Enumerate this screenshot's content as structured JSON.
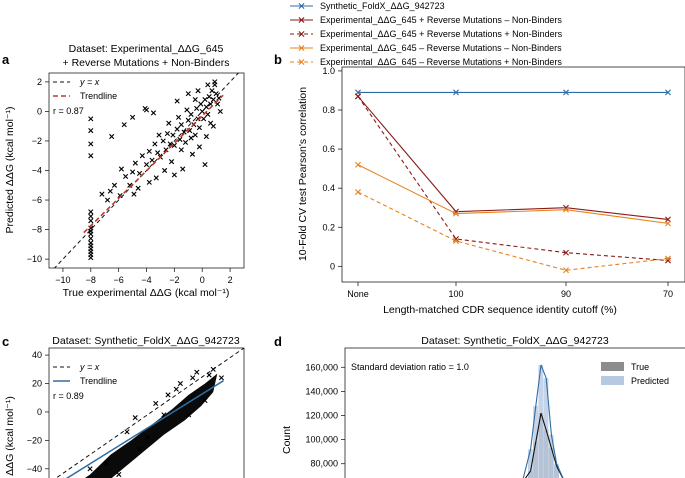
{
  "chart_data": [
    {
      "panel": "a",
      "type": "scatter",
      "title": "Dataset: Experimental_ΔΔG_645",
      "subtitle": "+ Reverse Mutations + Non-Binders",
      "xlabel": "True experimental ΔΔG (kcal mol⁻¹)",
      "ylabel": "Predicted ΔΔG (kcal mol⁻¹)",
      "xlim": [
        -11,
        3
      ],
      "ylim": [
        -10.6,
        2.6
      ],
      "xticks": [
        -10,
        -8,
        -6,
        -4,
        -2,
        0,
        2
      ],
      "yticks": [
        -10,
        -8,
        -6,
        -4,
        -2,
        0,
        2
      ],
      "tick_labels": [
        "−10",
        "−8",
        "−6",
        "−4",
        "−2",
        "0",
        "2"
      ],
      "legend": [
        {
          "label": "y = x",
          "color": "#000000",
          "style": "dashed"
        },
        {
          "label": "Trendline",
          "color": "#c0392b",
          "style": "dashed"
        }
      ],
      "r_label": "r = 0.87",
      "trendline": {
        "slope": 0.93,
        "intercept": -0.3
      },
      "points": [
        [
          -8,
          -6.8
        ],
        [
          -8,
          -7.4
        ],
        [
          -8,
          -7.9
        ],
        [
          -8,
          -8.3
        ],
        [
          -8,
          -8.6
        ],
        [
          -8,
          -8.9
        ],
        [
          -8,
          -9.1
        ],
        [
          -8,
          -9.3
        ],
        [
          -8,
          -9.5
        ],
        [
          -8,
          -9.7
        ],
        [
          -8,
          -9.9
        ],
        [
          -8,
          -7.1
        ],
        [
          -8,
          -8.1
        ],
        [
          -8,
          -0.5
        ],
        [
          -8,
          -1.3
        ],
        [
          -8,
          -2.2
        ],
        [
          -8,
          -3.0
        ],
        [
          -6.5,
          -1.7
        ],
        [
          -5.6,
          -0.9
        ],
        [
          -5.0,
          -0.4
        ],
        [
          -4.1,
          0.2
        ],
        [
          -4.0,
          0.1
        ],
        [
          -3.5,
          -0.1
        ],
        [
          -7.2,
          -5.6
        ],
        [
          -6.8,
          -6.0
        ],
        [
          -6.3,
          -5.0
        ],
        [
          -5.9,
          -5.7
        ],
        [
          -5.5,
          -4.4
        ],
        [
          -5.2,
          -5.0
        ],
        [
          -5.0,
          -4.1
        ],
        [
          -4.8,
          -3.5
        ],
        [
          -4.5,
          -4.2
        ],
        [
          -4.3,
          -3.0
        ],
        [
          -4.0,
          -3.6
        ],
        [
          -3.8,
          -2.7
        ],
        [
          -3.6,
          -3.3
        ],
        [
          -3.4,
          -2.2
        ],
        [
          -3.2,
          -2.8
        ],
        [
          -3.0,
          -3.1
        ],
        [
          -2.8,
          -2.0
        ],
        [
          -2.6,
          -2.6
        ],
        [
          -2.5,
          -1.5
        ],
        [
          -2.3,
          -2.2
        ],
        [
          -2.1,
          -1.6
        ],
        [
          -2.0,
          -2.3
        ],
        [
          -1.8,
          -1.2
        ],
        [
          -1.6,
          -1.9
        ],
        [
          -1.5,
          -0.9
        ],
        [
          -1.3,
          -1.4
        ],
        [
          -1.2,
          -2.1
        ],
        [
          -1.0,
          -0.6
        ],
        [
          -0.9,
          -1.3
        ],
        [
          -0.8,
          -0.2
        ],
        [
          -0.6,
          -0.9
        ],
        [
          -0.5,
          -1.6
        ],
        [
          -0.4,
          0.2
        ],
        [
          -0.3,
          -0.5
        ],
        [
          -0.2,
          -1.1
        ],
        [
          -0.1,
          0.5
        ],
        [
          0,
          0.0
        ],
        [
          0.1,
          -0.5
        ],
        [
          0.2,
          0.8
        ],
        [
          0.3,
          0.3
        ],
        [
          0.4,
          -0.2
        ],
        [
          0.5,
          1.0
        ],
        [
          0.6,
          0.5
        ],
        [
          0.7,
          1.4
        ],
        [
          0.8,
          0.8
        ],
        [
          0.9,
          1.8
        ],
        [
          1.0,
          1.2
        ],
        [
          1.1,
          0.5
        ],
        [
          -0.5,
          0.8
        ],
        [
          -1.1,
          0.1
        ],
        [
          -1.7,
          -0.4
        ],
        [
          -2.4,
          -0.8
        ],
        [
          -3.1,
          -1.6
        ],
        [
          -0.2,
          -2.4
        ],
        [
          0.3,
          -1.7
        ],
        [
          -0.7,
          -2.9
        ],
        [
          0.2,
          -3.6
        ],
        [
          -1.4,
          -3.9
        ],
        [
          -2.0,
          -4.3
        ],
        [
          -2.7,
          -4.0
        ],
        [
          -3.8,
          -4.8
        ],
        [
          -4.6,
          -5.2
        ],
        [
          -1.0,
          1.2
        ],
        [
          -1.8,
          0.7
        ],
        [
          0.8,
          -1.0
        ],
        [
          1.3,
          0.0
        ],
        [
          0.9,
          2.0
        ],
        [
          0.4,
          1.8
        ],
        [
          -0.3,
          1.4
        ],
        [
          -5.8,
          -3.9
        ],
        [
          -6.6,
          -5.4
        ],
        [
          -4.9,
          -5.6
        ],
        [
          -3.3,
          -4.5
        ],
        [
          -2.2,
          -3.4
        ],
        [
          -1.5,
          -2.6
        ],
        [
          -0.8,
          -1.8
        ],
        [
          0.6,
          -0.8
        ],
        [
          1.2,
          0.9
        ]
      ]
    },
    {
      "panel": "b",
      "type": "line",
      "xlabel": "Length-matched CDR sequence identity cutoff (%)",
      "ylabel": "10-Fold CV test Pearson's correlation",
      "categories": [
        "None",
        "100",
        "90",
        "70"
      ],
      "ylim": [
        -0.08,
        1.02
      ],
      "yticks": [
        0,
        0.2,
        0.4,
        0.6,
        0.8,
        1.0
      ],
      "ytick_labels": [
        "0",
        "0.2",
        "0.4",
        "0.6",
        "0.8",
        "1.0"
      ],
      "series": [
        {
          "name": "Synthetic_FoldX_ΔΔG_942723",
          "color": "#2e6da4",
          "style": "solid",
          "values": [
            0.89,
            0.89,
            0.89,
            0.89
          ]
        },
        {
          "name": "Experimental_ΔΔG_645 + Reverse Mutations – Non-Binders",
          "color": "#8b1a1a",
          "style": "solid",
          "values": [
            0.87,
            0.28,
            0.3,
            0.24
          ]
        },
        {
          "name": "Experimental_ΔΔG_645 + Reverse Mutations + Non-Binders",
          "color": "#8b1a1a",
          "style": "dashed",
          "values": [
            0.87,
            0.14,
            0.07,
            0.03
          ]
        },
        {
          "name": "Experimental_ΔΔG_645 – Reverse Mutations – Non-Binders",
          "color": "#e8821e",
          "style": "solid",
          "values": [
            0.52,
            0.27,
            0.29,
            0.22
          ]
        },
        {
          "name": "Experimental_ΔΔG_645 – Reverse Mutations + Non-Binders",
          "color": "#e8821e",
          "style": "dashed",
          "values": [
            0.38,
            0.13,
            -0.02,
            0.04
          ]
        }
      ]
    },
    {
      "panel": "c",
      "type": "scatter",
      "title": "Dataset: Synthetic_FoldX_ΔΔG_942723",
      "ylabel": "ΔΔG (kcal mol⁻¹)",
      "ylim": [
        -50,
        45
      ],
      "yticks": [
        40,
        20,
        0,
        -20,
        -40
      ],
      "ytick_labels": [
        "40",
        "20",
        "0",
        "−20",
        "−40"
      ],
      "legend": [
        {
          "label": "y = x",
          "color": "#000000",
          "style": "dashed"
        },
        {
          "label": "Trendline",
          "color": "#2e6da4",
          "style": "solid"
        }
      ],
      "r_label": "r = 0.89"
    },
    {
      "panel": "d",
      "type": "bar",
      "title": "Dataset: Synthetic_FoldX_ΔΔG_942723",
      "ylabel": "Count",
      "annotation": "Standard deviation ratio = 1.0",
      "yticks": [
        160000,
        140000,
        120000,
        100000,
        80000
      ],
      "ytick_labels": [
        "160,000",
        "140,000",
        "120,000",
        "100,000",
        "80,000"
      ],
      "ylim": [
        64000,
        176000
      ],
      "legend": [
        {
          "label": "True",
          "color": "#8c8c8c"
        },
        {
          "label": "Predicted",
          "color": "#b7c9e2"
        }
      ],
      "true_bins": [
        74000,
        98000,
        122000,
        108000,
        93000,
        78000
      ],
      "pred_bins": [
        92000,
        128000,
        162000,
        151000,
        104000,
        80000
      ]
    }
  ],
  "panel_letters": [
    "a",
    "b",
    "c",
    "d"
  ]
}
